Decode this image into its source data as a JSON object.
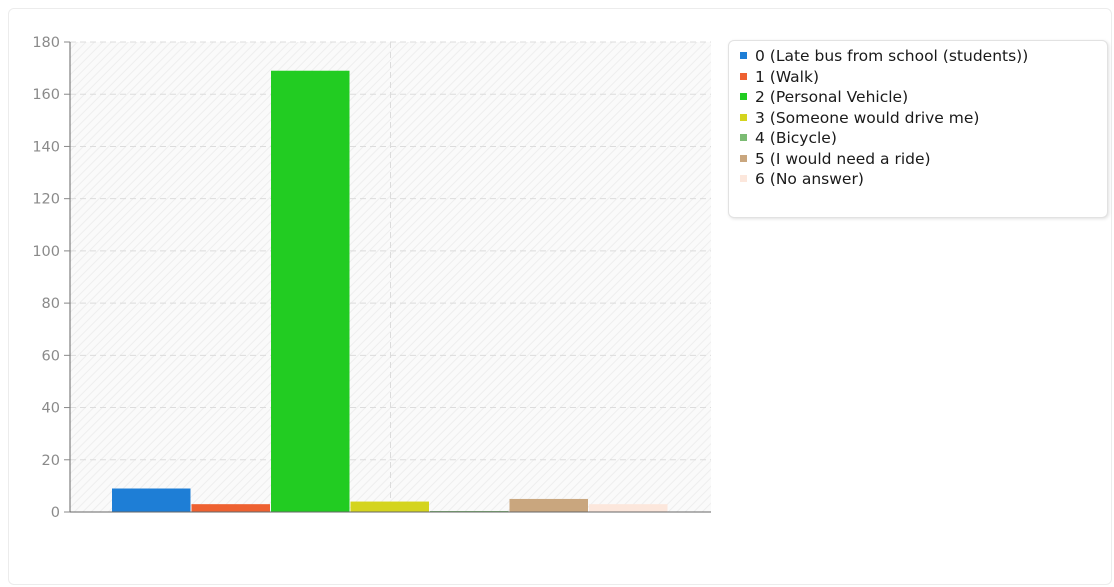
{
  "chart_data": {
    "type": "bar",
    "title": "",
    "xlabel": "",
    "ylabel": "",
    "ylim": [
      0,
      180
    ],
    "yticks": [
      0,
      20,
      40,
      60,
      80,
      100,
      120,
      140,
      160,
      180
    ],
    "grid": true,
    "legend_position": "top-right",
    "series": [
      {
        "name": "0 (Late bus from school (students))",
        "value": 9,
        "color": "#1e7ed6"
      },
      {
        "name": "1 (Walk)",
        "value": 3,
        "color": "#ee6131"
      },
      {
        "name": "2 (Personal Vehicle)",
        "value": 169,
        "color": "#22cc22"
      },
      {
        "name": "3 (Someone would drive me)",
        "value": 4,
        "color": "#d4d41e"
      },
      {
        "name": "4 (Bicycle)",
        "value": 0.3,
        "color": "#7bbb73"
      },
      {
        "name": "5 (I would need a ride)",
        "value": 5,
        "color": "#c9a67e"
      },
      {
        "name": "6 (No answer)",
        "value": 3,
        "color": "#fce7dc"
      }
    ]
  }
}
